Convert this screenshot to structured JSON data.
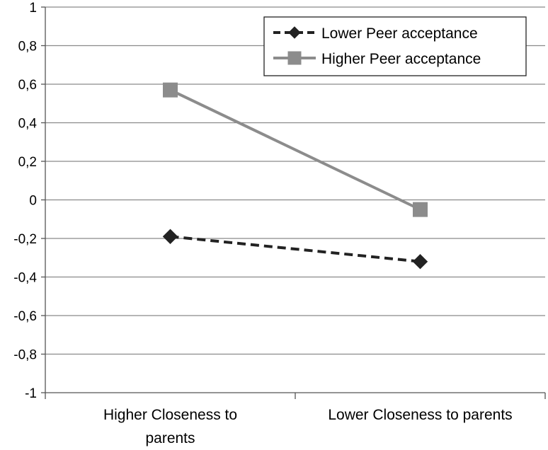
{
  "chart_data": {
    "type": "line",
    "categories": [
      "Higher Closeness to parents",
      "Lower Closeness to parents"
    ],
    "category_lines": [
      [
        "Higher Closeness to",
        "parents"
      ],
      [
        "Lower Closeness to parents"
      ]
    ],
    "ylim": [
      -1,
      1
    ],
    "yticks": [
      1,
      0.8,
      0.6,
      0.4,
      0.2,
      0,
      -0.2,
      -0.4,
      -0.6,
      -0.8,
      -1
    ],
    "ytick_labels": [
      "1",
      "0,8",
      "0,6",
      "0,4",
      "0,2",
      "0",
      "-0,2",
      "-0,4",
      "-0,6",
      "-0,8",
      "-1"
    ],
    "grid": true,
    "legend_position": "top-right",
    "series": [
      {
        "name": "Lower Peer acceptance",
        "values": [
          -0.19,
          -0.32
        ],
        "color": "#222222",
        "line": "dashed",
        "marker": "diamond"
      },
      {
        "name": "Higher Peer acceptance",
        "values": [
          0.57,
          -0.05
        ],
        "color": "#8c8c8c",
        "line": "solid",
        "marker": "square"
      }
    ]
  }
}
